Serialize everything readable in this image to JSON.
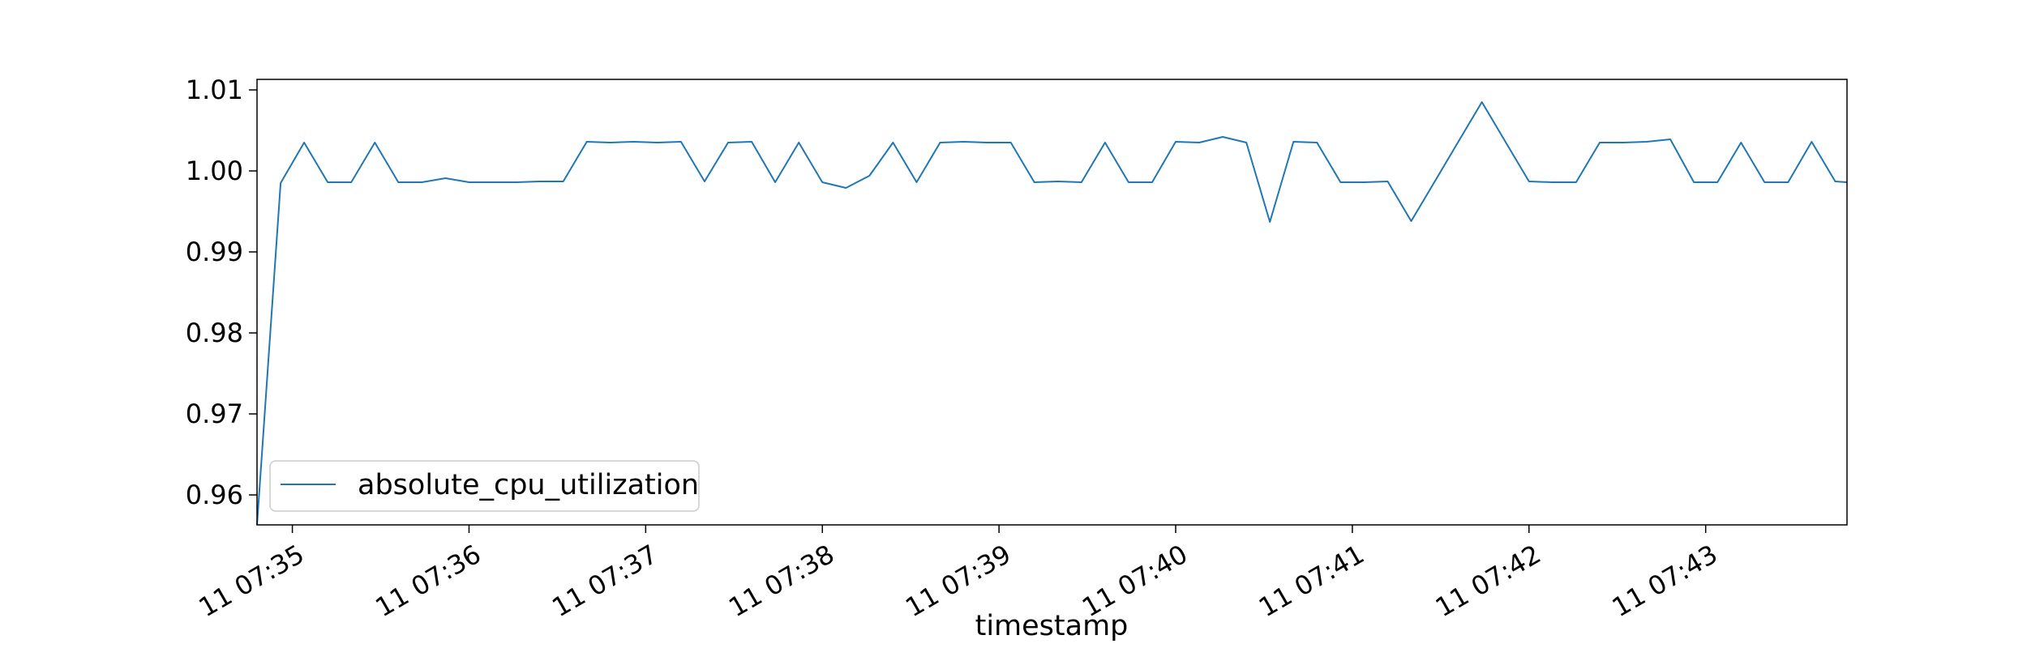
{
  "chart_data": {
    "type": "line",
    "xlabel": "timestamp",
    "ylabel": "",
    "ylim": [
      0.9563,
      1.0113
    ],
    "yticks": [
      0.96,
      0.97,
      0.98,
      0.99,
      1.0,
      1.01
    ],
    "ytick_labels": [
      "0.96",
      "0.97",
      "0.98",
      "0.99",
      "1.00",
      "1.01"
    ],
    "xlim": [
      "07:34:48",
      "07:43:48"
    ],
    "xticks": [
      "07:35:00",
      "07:36:00",
      "07:37:00",
      "07:38:00",
      "07:39:00",
      "07:40:00",
      "07:41:00",
      "07:42:00",
      "07:43:00"
    ],
    "xtick_labels": [
      "11 07:35",
      "11 07:36",
      "11 07:37",
      "11 07:38",
      "11 07:39",
      "11 07:40",
      "11 07:41",
      "11 07:42",
      "11 07:43"
    ],
    "grid": false,
    "legend_position": "lower-left",
    "series": [
      {
        "name": "absolute_cpu_utilization",
        "color": "#1f77b4",
        "x": [
          "07:34:48",
          "07:34:56",
          "07:35:04",
          "07:35:12",
          "07:35:20",
          "07:35:28",
          "07:35:36",
          "07:35:44",
          "07:35:52",
          "07:36:00",
          "07:36:08",
          "07:36:16",
          "07:36:24",
          "07:36:32",
          "07:36:40",
          "07:36:48",
          "07:36:56",
          "07:37:04",
          "07:37:12",
          "07:37:20",
          "07:37:28",
          "07:37:36",
          "07:37:44",
          "07:37:52",
          "07:38:00",
          "07:38:08",
          "07:38:16",
          "07:38:24",
          "07:38:32",
          "07:38:40",
          "07:38:48",
          "07:38:56",
          "07:39:04",
          "07:39:12",
          "07:39:20",
          "07:39:28",
          "07:39:36",
          "07:39:44",
          "07:39:52",
          "07:40:00",
          "07:40:08",
          "07:40:16",
          "07:40:24",
          "07:40:32",
          "07:40:40",
          "07:40:48",
          "07:40:56",
          "07:41:04",
          "07:41:12",
          "07:41:20",
          "07:41:28",
          "07:41:36",
          "07:41:44",
          "07:41:52",
          "07:42:00",
          "07:42:08",
          "07:42:16",
          "07:42:24",
          "07:42:32",
          "07:42:40",
          "07:42:48",
          "07:42:56",
          "07:43:04",
          "07:43:12",
          "07:43:20",
          "07:43:28",
          "07:43:36",
          "07:43:44",
          "07:43:48"
        ],
        "values": [
          0.9563,
          0.9985,
          1.0035,
          0.9986,
          0.9986,
          1.0035,
          0.9986,
          0.9986,
          0.9991,
          0.9986,
          0.9986,
          0.9986,
          0.9987,
          0.9987,
          1.0036,
          1.0035,
          1.0036,
          1.0035,
          1.0036,
          0.9987,
          1.0035,
          1.0036,
          0.9986,
          1.0035,
          0.9986,
          0.9979,
          0.9994,
          1.0035,
          0.9986,
          1.0035,
          1.0036,
          1.0035,
          1.0035,
          0.9986,
          0.9987,
          0.9986,
          1.0035,
          0.9986,
          0.9986,
          1.0036,
          1.0035,
          1.0042,
          1.0035,
          0.9937,
          1.0036,
          1.0035,
          0.9986,
          0.9986,
          0.9987,
          0.9938,
          0.9987,
          1.0036,
          1.0085,
          1.0036,
          0.9987,
          0.9986,
          0.9986,
          1.0035,
          1.0035,
          1.0036,
          1.0039,
          0.9986,
          0.9986,
          1.0035,
          0.9986,
          0.9986,
          1.0036,
          0.9987,
          0.9986
        ]
      }
    ]
  }
}
